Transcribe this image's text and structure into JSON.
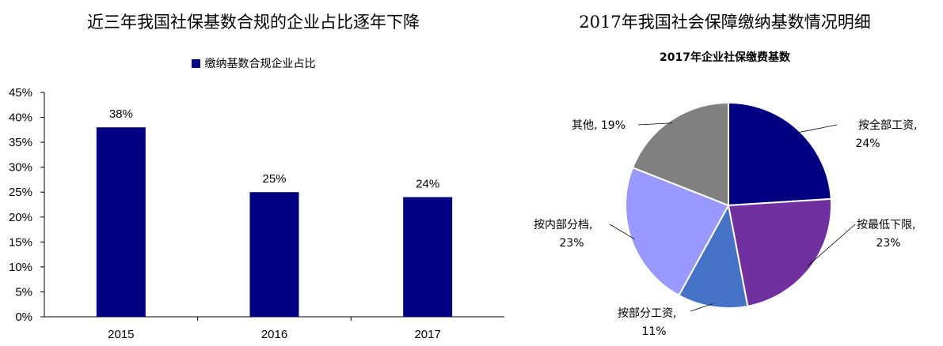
{
  "bar_panel": {
    "title": "近三年我国社保基数合规的企业占比逐年下降",
    "legend_label": "缴纳基数合规企业占比",
    "bar_color": "#000080"
  },
  "pie_panel": {
    "title": "2017年我国社会保障缴纳基数情况明细",
    "chart_title": "2017年企业社保缴费基数"
  },
  "chart_data": [
    {
      "type": "bar",
      "title": "近三年我国社保基数合规的企业占比逐年下降",
      "categories": [
        "2015",
        "2016",
        "2017"
      ],
      "series": [
        {
          "name": "缴纳基数合规企业占比",
          "values": [
            38,
            25,
            24
          ],
          "color": "#000080"
        }
      ],
      "data_labels": [
        "38%",
        "25%",
        "24%"
      ],
      "ylim": [
        0,
        45
      ],
      "yticks": [
        "0%",
        "5%",
        "10%",
        "15%",
        "20%",
        "25%",
        "30%",
        "35%",
        "40%",
        "45%"
      ],
      "legend_position": "top",
      "grid": false
    },
    {
      "type": "pie",
      "title": "2017年企业社保缴费基数",
      "slices": [
        {
          "label": "按全部工资,",
          "value": 24,
          "value_label": "24%",
          "color": "#000080"
        },
        {
          "label": "按最低下限,",
          "value": 23,
          "value_label": "23%",
          "color": "#7030A0"
        },
        {
          "label": "按部分工资,",
          "value": 11,
          "value_label": "11%",
          "color": "#4472C4"
        },
        {
          "label": "按内部分档,",
          "value": 23,
          "value_label": "23%",
          "color": "#9999FF"
        },
        {
          "label": "其他, 19%",
          "value": 19,
          "value_label": "",
          "color": "#808080"
        }
      ],
      "start_angle": "12 o'clock",
      "direction": "clockwise"
    }
  ]
}
